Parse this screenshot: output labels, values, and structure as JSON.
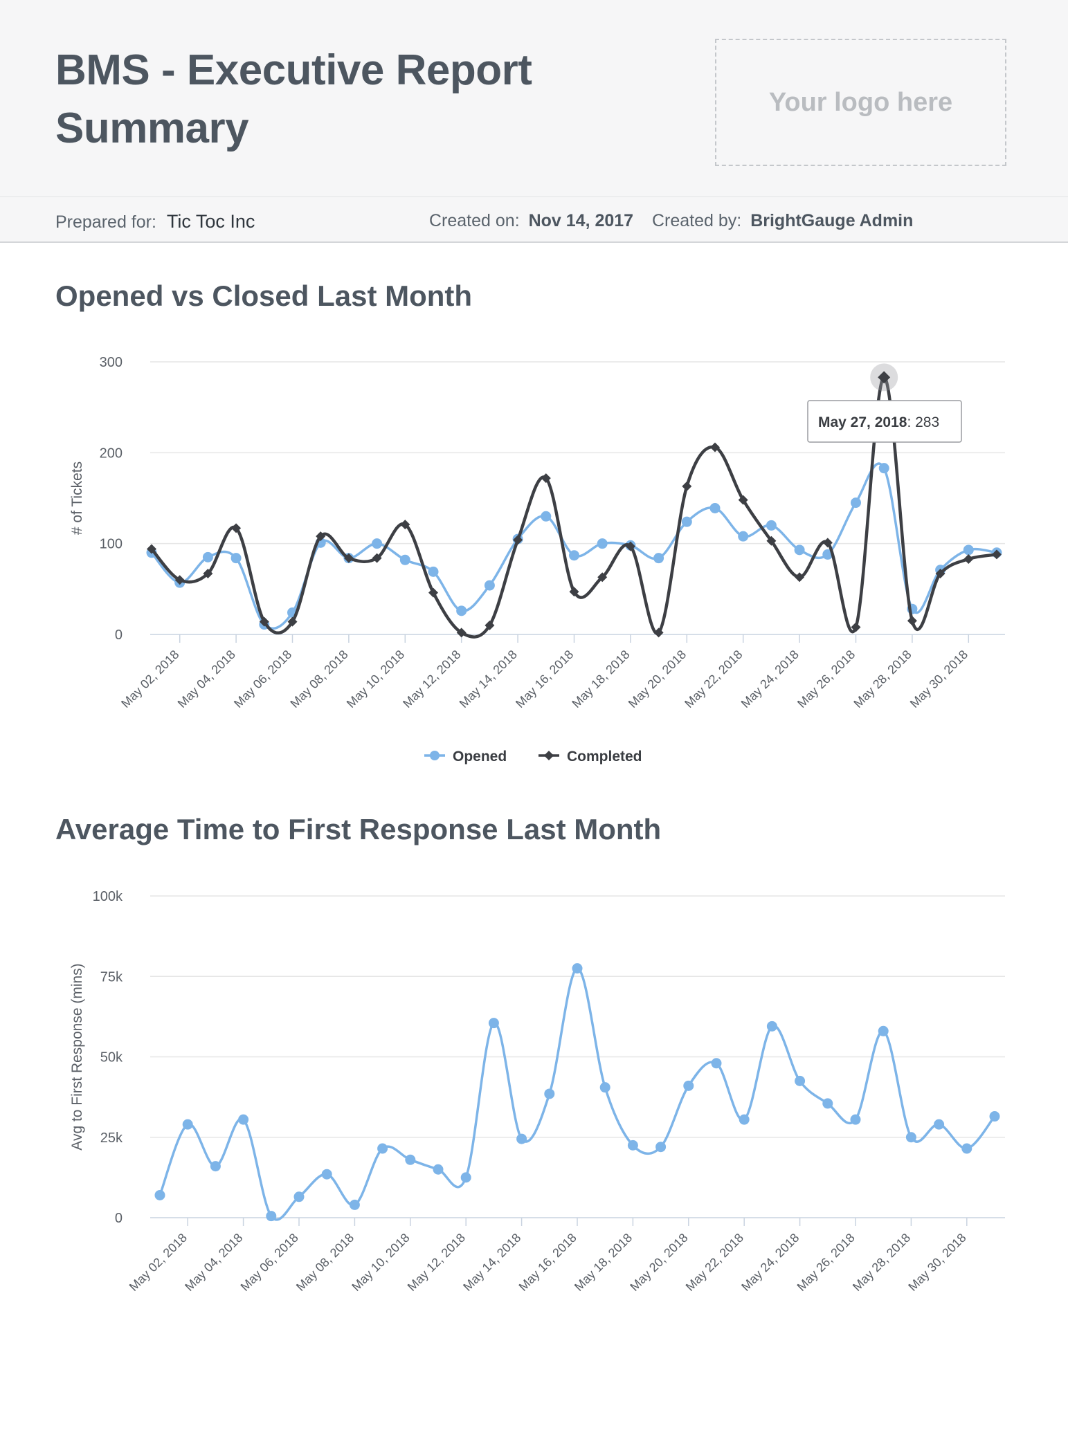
{
  "report": {
    "title_line1": "BMS - Executive Report",
    "title_line2": "Summary",
    "logo_placeholder": "Your logo here",
    "prepared_for_label": "Prepared for:",
    "prepared_for_value": "Tic Toc Inc",
    "created_on_label": "Created on:",
    "created_on_value": "Nov 14, 2017",
    "created_by_label": "Created by:",
    "created_by_value": "BrightGauge Admin"
  },
  "colors": {
    "opened": "#7db4e8",
    "completed": "#3d3f44",
    "grid": "#e6e6e6",
    "axis_text": "#5a5f66"
  },
  "chart_data": [
    {
      "type": "line",
      "title": "Opened vs Closed Last Month",
      "ylabel": "# of Tickets",
      "xlabel": "",
      "ylim": [
        0,
        300
      ],
      "yticks": [
        "0",
        "100",
        "200",
        "300"
      ],
      "x": [
        "May 01, 2018",
        "May 02, 2018",
        "May 03, 2018",
        "May 04, 2018",
        "May 05, 2018",
        "May 06, 2018",
        "May 07, 2018",
        "May 08, 2018",
        "May 09, 2018",
        "May 10, 2018",
        "May 11, 2018",
        "May 12, 2018",
        "May 13, 2018",
        "May 14, 2018",
        "May 15, 2018",
        "May 16, 2018",
        "May 17, 2018",
        "May 18, 2018",
        "May 19, 2018",
        "May 20, 2018",
        "May 21, 2018",
        "May 22, 2018",
        "May 23, 2018",
        "May 24, 2018",
        "May 25, 2018",
        "May 26, 2018",
        "May 27, 2018",
        "May 28, 2018",
        "May 29, 2018",
        "May 30, 2018",
        "May 31, 2018"
      ],
      "xtick_labels": [
        "May 02, 2018",
        "May 04, 2018",
        "May 06, 2018",
        "May 08, 2018",
        "May 10, 2018",
        "May 12, 2018",
        "May 14, 2018",
        "May 16, 2018",
        "May 18, 2018",
        "May 20, 2018",
        "May 22, 2018",
        "May 24, 2018",
        "May 26, 2018",
        "May 28, 2018",
        "May 30, 2018"
      ],
      "series": [
        {
          "name": "Opened",
          "marker": "circle",
          "values": [
            90,
            57,
            85,
            84,
            11,
            24,
            101,
            84,
            100,
            82,
            69,
            26,
            54,
            105,
            130,
            87,
            100,
            98,
            84,
            124,
            139,
            108,
            120,
            93,
            88,
            145,
            183,
            28,
            71,
            93,
            90
          ]
        },
        {
          "name": "Completed",
          "marker": "diamond",
          "values": [
            94,
            60,
            67,
            117,
            14,
            14,
            108,
            84,
            84,
            121,
            46,
            2,
            10,
            104,
            172,
            47,
            63,
            97,
            2,
            163,
            206,
            148,
            103,
            63,
            101,
            8,
            283,
            15,
            67,
            83,
            88
          ]
        }
      ],
      "tooltip": {
        "date": "May 27, 2018",
        "value": "283"
      },
      "legend": "bottom-center",
      "grid": true
    },
    {
      "type": "line",
      "title": "Average Time to First Response Last Month",
      "ylabel": "Avg to First Response (mins)",
      "xlabel": "",
      "ylim": [
        0,
        100000
      ],
      "yticks": [
        "0",
        "25k",
        "50k",
        "75k",
        "100k"
      ],
      "x": [
        "May 01, 2018",
        "May 02, 2018",
        "May 03, 2018",
        "May 04, 2018",
        "May 05, 2018",
        "May 06, 2018",
        "May 07, 2018",
        "May 08, 2018",
        "May 09, 2018",
        "May 10, 2018",
        "May 11, 2018",
        "May 12, 2018",
        "May 13, 2018",
        "May 14, 2018",
        "May 15, 2018",
        "May 16, 2018",
        "May 17, 2018",
        "May 18, 2018",
        "May 19, 2018",
        "May 20, 2018",
        "May 21, 2018",
        "May 22, 2018",
        "May 23, 2018",
        "May 24, 2018",
        "May 25, 2018",
        "May 26, 2018",
        "May 27, 2018",
        "May 28, 2018",
        "May 29, 2018",
        "May 30, 2018",
        "May 31, 2018"
      ],
      "xtick_labels": [
        "May 02, 2018",
        "May 04, 2018",
        "May 06, 2018",
        "May 08, 2018",
        "May 10, 2018",
        "May 12, 2018",
        "May 14, 2018",
        "May 16, 2018",
        "May 18, 2018",
        "May 20, 2018",
        "May 22, 2018",
        "May 24, 2018",
        "May 26, 2018",
        "May 28, 2018",
        "May 30, 2018"
      ],
      "series": [
        {
          "name": "",
          "marker": "circle",
          "values": [
            7000,
            29000,
            16000,
            30500,
            500,
            6500,
            13500,
            4000,
            21500,
            18000,
            15000,
            12500,
            60500,
            24500,
            38500,
            77500,
            40500,
            22500,
            22000,
            41000,
            48000,
            30500,
            59500,
            42500,
            35500,
            30500,
            58000,
            25000,
            29000,
            21500,
            31500
          ]
        }
      ],
      "legend": "none",
      "grid": true
    }
  ]
}
